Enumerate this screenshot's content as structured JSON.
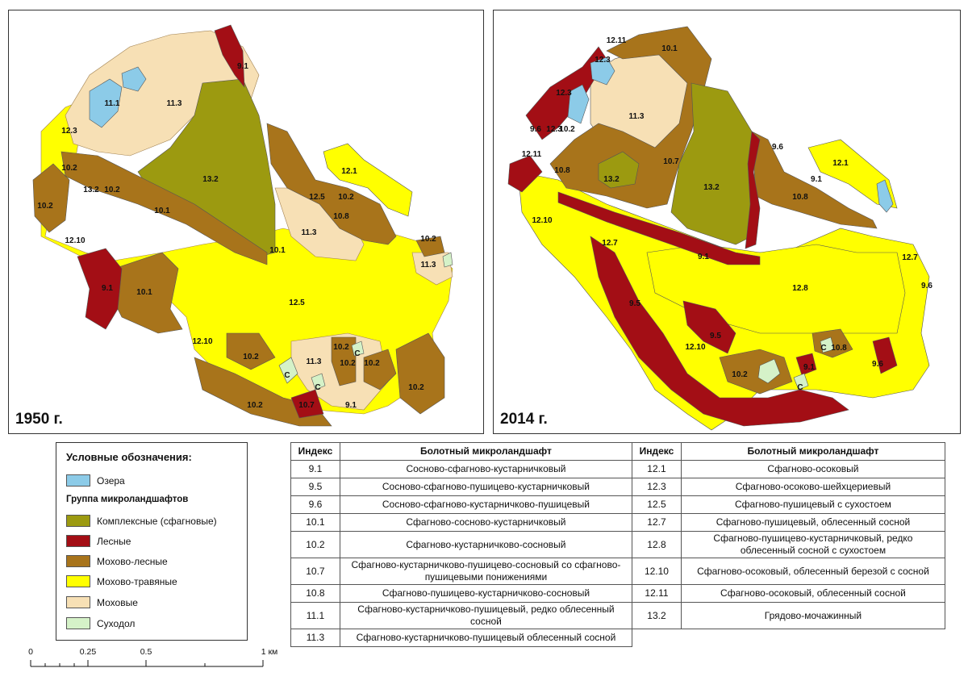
{
  "colors": {
    "lakes": "#8ccbe8",
    "complex": "#9c9a10",
    "forest": "#a30e15",
    "moss_forest": "#a8741b",
    "moss_grass": "#ffff00",
    "moss": "#f7e0b5",
    "dry": "#d5f2c8"
  },
  "maps": [
    {
      "year_label": "1950 г.",
      "labels": [
        "9.1",
        "11.1",
        "11.3",
        "12.3",
        "13.2",
        "10.2",
        "13.2",
        "10.2",
        "10.1",
        "10.2",
        "12.1",
        "12.5",
        "10.2",
        "10.8",
        "11.3",
        "10.1",
        "12.10",
        "10.2",
        "11.3",
        "9.1",
        "10.1",
        "12.5",
        "12.10",
        "10.2",
        "11.3",
        "10.2",
        "C",
        "10.2",
        "10.2",
        "C",
        "C",
        "10.2",
        "10.7",
        "9.1",
        "10.2"
      ]
    },
    {
      "year_label": "2014 г.",
      "labels": [
        "12.11",
        "10.1",
        "12.3",
        "12.3",
        "11.3",
        "9.6",
        "12.3",
        "10.2",
        "12.11",
        "10.8",
        "10.7",
        "13.2",
        "13.2",
        "9.6",
        "12.1",
        "9.1",
        "10.8",
        "12.10",
        "12.7",
        "9.1",
        "12.7",
        "12.8",
        "9.6",
        "9.5",
        "9.5",
        "12.10",
        "10.8",
        "C",
        "10.2",
        "9.1",
        "C",
        "9.6"
      ]
    }
  ],
  "legend": {
    "title": "Условные обозначения:",
    "lakes_label": "Озера",
    "group_title": "Группа микроландшафтов",
    "items": [
      {
        "label": "Комплексные (сфагновые)",
        "color": "#9c9a10"
      },
      {
        "label": "Лесные",
        "color": "#a30e15"
      },
      {
        "label": "Мохово-лесные",
        "color": "#a8741b"
      },
      {
        "label": "Мохово-травяные",
        "color": "#ffff00"
      },
      {
        "label": "Моховые",
        "color": "#f7e0b5"
      },
      {
        "label": "Суходол",
        "color": "#d5f2c8"
      }
    ]
  },
  "scale": {
    "ticks": [
      "0",
      "0.25",
      "0.5",
      "1 км"
    ]
  },
  "table": {
    "headers": [
      "Индекс",
      "Болотный микроландшафт",
      "Индекс",
      "Болотный микроландшафт"
    ],
    "rows": [
      [
        "9.1",
        "Сосново-сфагново-кустарничковый",
        "12.1",
        "Сфагново-осоковый"
      ],
      [
        "9.5",
        "Сосново-сфагново-пушицево-кустарничковый",
        "12.3",
        "Сфагново-осоково-шейхцериевый"
      ],
      [
        "9.6",
        "Сосново-сфагново-кустарничково-пушицевый",
        "12.5",
        "Сфагново-пушицевый с сухостоем"
      ],
      [
        "10.1",
        "Сфагново-сосново-кустарничковый",
        "12.7",
        "Сфагново-пушицевый, облесенный сосной"
      ],
      [
        "10.2",
        "Сфагново-кустарничково-сосновый",
        "12.8",
        "Сфагново-пушицево-кустарничковый, редко облесенный сосной с сухостоем"
      ],
      [
        "10.7",
        "Сфагново-кустарничково-пушицево-сосновый со сфагново-пушицевыми понижениями",
        "12.10",
        "Сфагново-осоковый, облесенный березой с сосной"
      ],
      [
        "10.8",
        "Сфагново-пушицево-кустарничково-сосновый",
        "12.11",
        "Сфагново-осоковый, облесенный сосной"
      ],
      [
        "11.1",
        "Сфагново-кустарничково-пушицевый, редко облесенный сосной",
        "13.2",
        "Грядово-мочажинный"
      ],
      [
        "11.3",
        "Сфагново-кустарничково-пушицевый облесенный сосной",
        "",
        ""
      ]
    ]
  }
}
